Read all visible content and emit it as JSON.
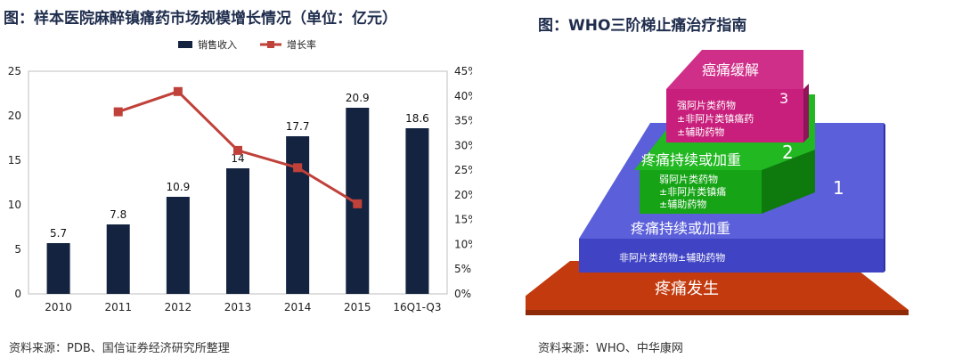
{
  "left_panel": {
    "title": "图：样本医院麻醉镇痛药市场规模增长情况（单位：亿元）",
    "source": "资料来源：PDB、国信证券经济研究所整理"
  },
  "right_panel": {
    "title": "图：WHO三阶梯止痛治疗指南",
    "source": "资料来源：WHO、中华康网",
    "levels": [
      {
        "label": "疼痛发生",
        "color": "#c33a0e"
      },
      {
        "label": "疼痛持续或加重",
        "number": "1",
        "drugs": [
          "非阿片类药物±辅助药物"
        ],
        "color": "#4b4fd3"
      },
      {
        "label": "疼痛持续或加重",
        "number": "2",
        "drugs": [
          "弱阿片类药物",
          "±非阿片类镇痛",
          "±辅助药物"
        ],
        "color": "#16a416"
      },
      {
        "label": "癌痛缓解",
        "number": "3",
        "drugs": [
          "强阿片类药物",
          "±非阿片类镇痛药",
          "±辅助药物"
        ],
        "color": "#c81f7c"
      }
    ]
  },
  "chart_data": {
    "type": "bar",
    "title": "",
    "categories": [
      "2010",
      "2011",
      "2012",
      "2013",
      "2014",
      "2015",
      "16Q1-Q3"
    ],
    "series": [
      {
        "name": "销售收入",
        "type": "bar",
        "axis": "left",
        "color": "#132340",
        "values": [
          5.7,
          7.8,
          10.9,
          14.1,
          17.7,
          20.9,
          18.6
        ],
        "labels": [
          "5.7",
          "7.8",
          "10.9",
          "14",
          "17.7",
          "20.9",
          "18.6"
        ]
      },
      {
        "name": "增长率",
        "type": "line",
        "axis": "right",
        "color": "#c0413a",
        "values": [
          null,
          36.8,
          40.9,
          29.0,
          25.5,
          18.2,
          null
        ]
      }
    ],
    "y_left": {
      "min": 0,
      "max": 25,
      "ticks": [
        "0",
        "5",
        "10",
        "15",
        "20",
        "25"
      ]
    },
    "y_right": {
      "min": 0,
      "max": 45,
      "ticks": [
        "0%",
        "5%",
        "10%",
        "15%",
        "20%",
        "25%",
        "30%",
        "35%",
        "40%",
        "45%"
      ]
    },
    "legend_position": "top",
    "grid": false
  }
}
